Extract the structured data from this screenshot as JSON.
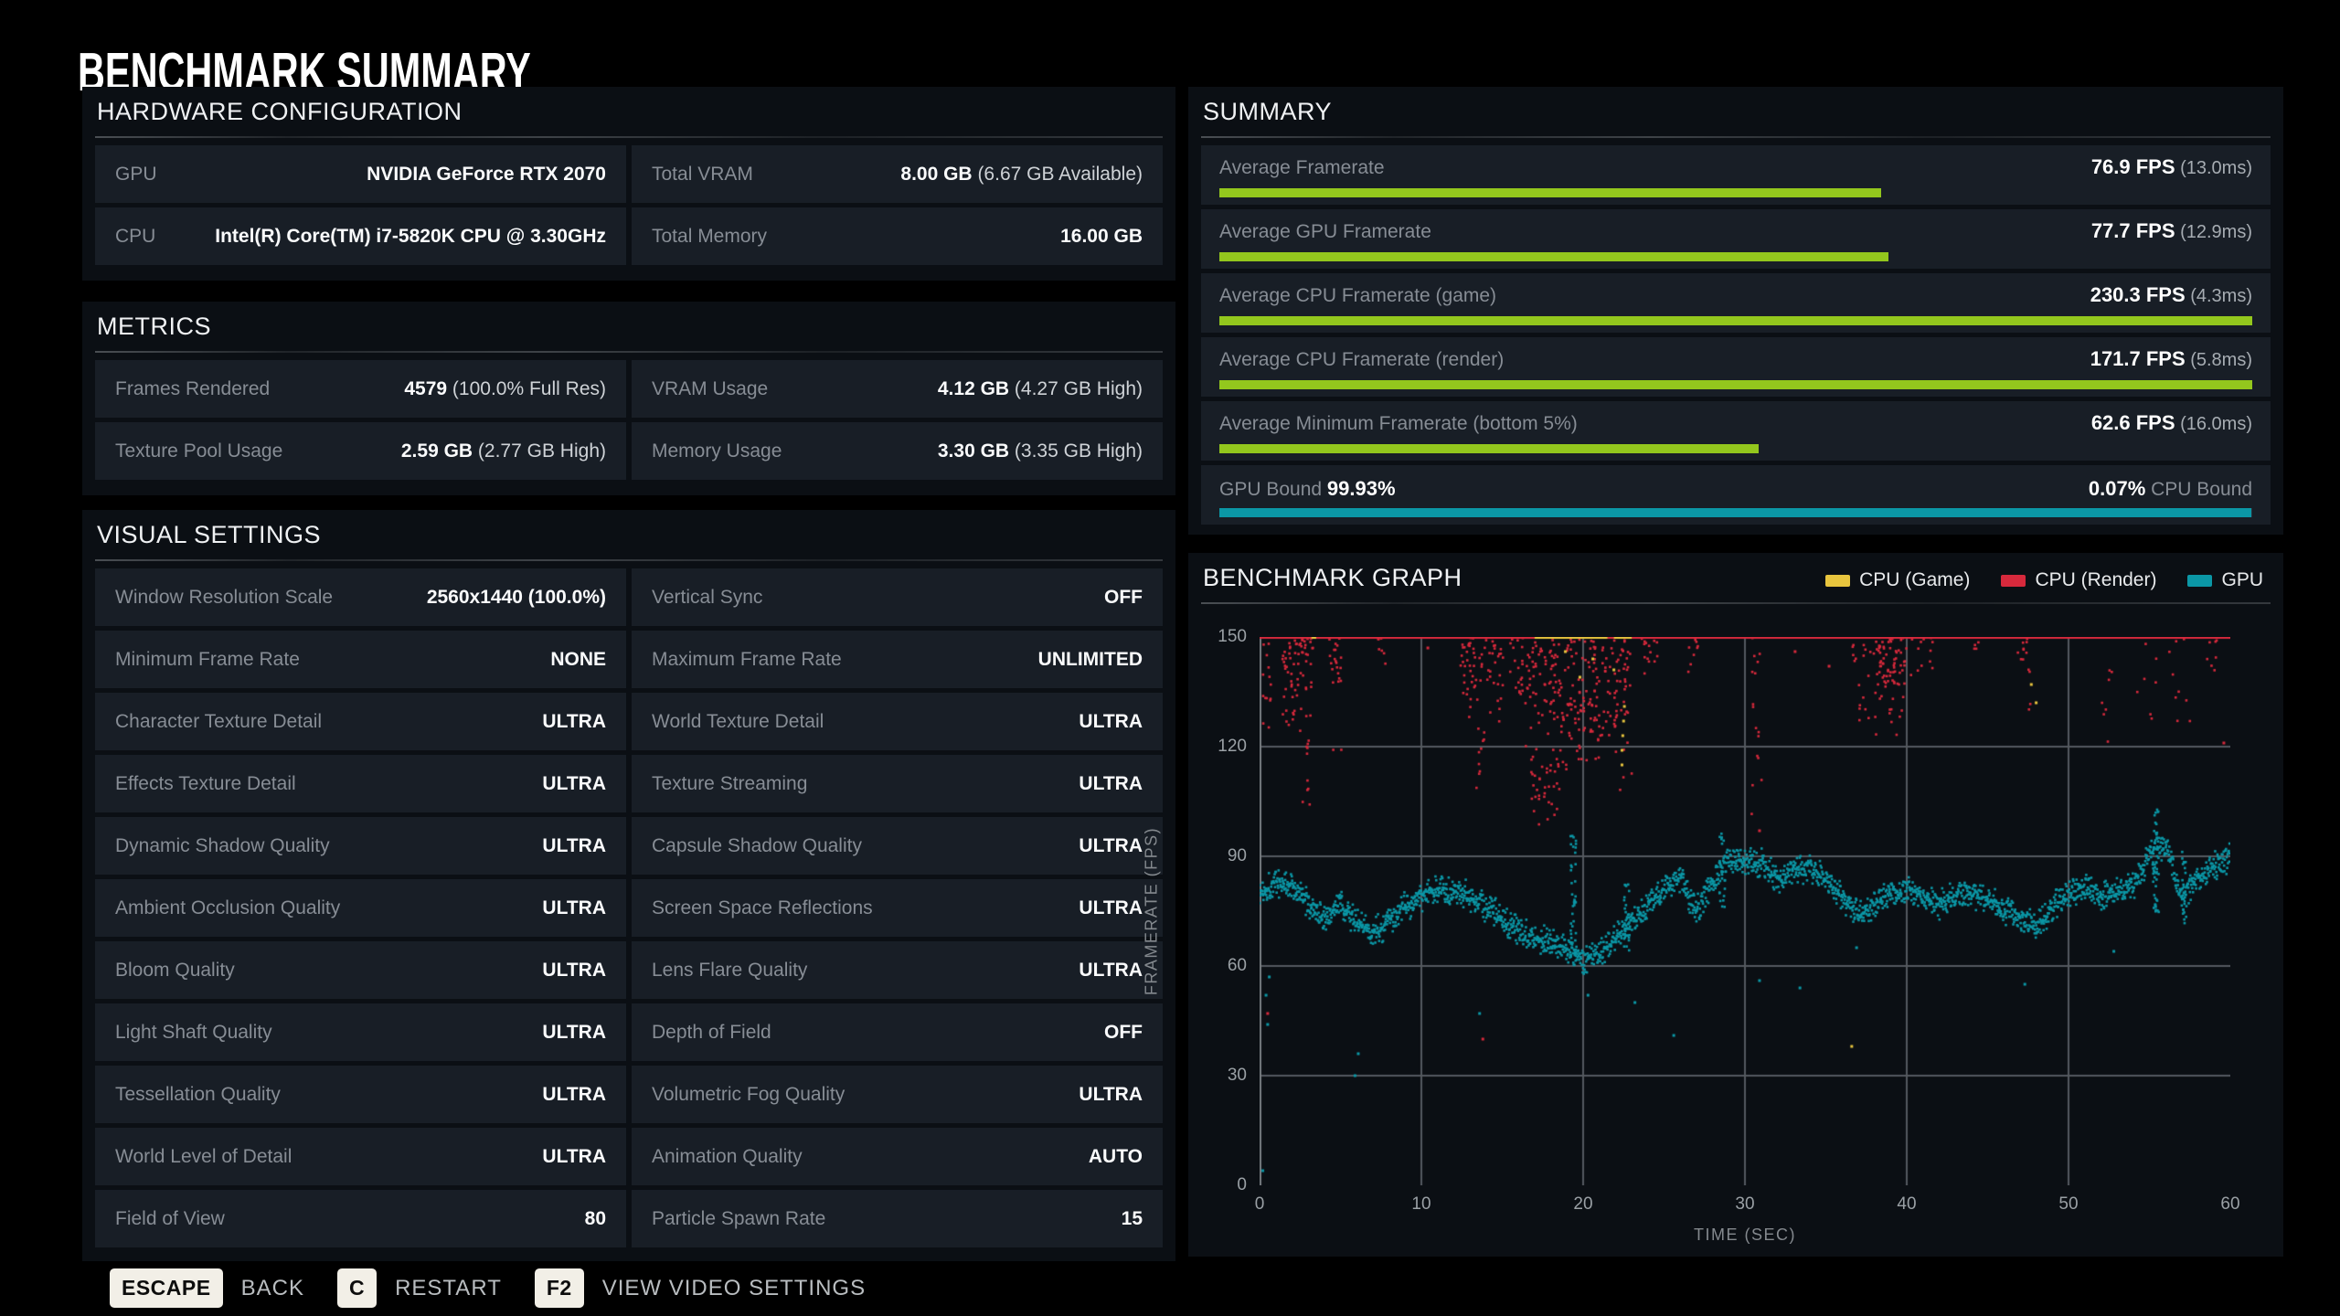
{
  "title": "BENCHMARK SUMMARY",
  "colors": {
    "accent_green": "#93c71d",
    "accent_teal": "#0b97a6",
    "accent_red": "#d7293c",
    "accent_yellow": "#e8c53e",
    "row_bg": "#181e26",
    "grid": "#54595f"
  },
  "hardware": {
    "title": "HARDWARE CONFIGURATION",
    "rows": [
      [
        {
          "label": "GPU",
          "value": "NVIDIA GeForce RTX 2070",
          "sub": ""
        },
        {
          "label": "Total VRAM",
          "value": "8.00 GB",
          "sub": "(6.67 GB Available)"
        }
      ],
      [
        {
          "label": "CPU",
          "value": "Intel(R) Core(TM) i7-5820K CPU @ 3.30GHz",
          "sub": ""
        },
        {
          "label": "Total Memory",
          "value": "16.00 GB",
          "sub": ""
        }
      ]
    ]
  },
  "metrics": {
    "title": "METRICS",
    "rows": [
      [
        {
          "label": "Frames Rendered",
          "value": "4579",
          "sub": "(100.0% Full Res)"
        },
        {
          "label": "VRAM Usage",
          "value": "4.12 GB",
          "sub": "(4.27 GB High)"
        }
      ],
      [
        {
          "label": "Texture Pool Usage",
          "value": "2.59 GB",
          "sub": "(2.77 GB High)"
        },
        {
          "label": "Memory Usage",
          "value": "3.30 GB",
          "sub": "(3.35 GB High)"
        }
      ]
    ]
  },
  "visual": {
    "title": "VISUAL SETTINGS",
    "rows": [
      [
        {
          "label": "Window Resolution Scale",
          "value": "2560x1440 (100.0%)"
        },
        {
          "label": "Vertical Sync",
          "value": "OFF"
        }
      ],
      [
        {
          "label": "Minimum Frame Rate",
          "value": "NONE"
        },
        {
          "label": "Maximum Frame Rate",
          "value": "UNLIMITED"
        }
      ],
      [
        {
          "label": "Character Texture Detail",
          "value": "ULTRA"
        },
        {
          "label": "World Texture Detail",
          "value": "ULTRA"
        }
      ],
      [
        {
          "label": "Effects Texture Detail",
          "value": "ULTRA"
        },
        {
          "label": "Texture Streaming",
          "value": "ULTRA"
        }
      ],
      [
        {
          "label": "Dynamic Shadow Quality",
          "value": "ULTRA"
        },
        {
          "label": "Capsule Shadow Quality",
          "value": "ULTRA"
        }
      ],
      [
        {
          "label": "Ambient Occlusion Quality",
          "value": "ULTRA"
        },
        {
          "label": "Screen Space Reflections",
          "value": "ULTRA"
        }
      ],
      [
        {
          "label": "Bloom Quality",
          "value": "ULTRA"
        },
        {
          "label": "Lens Flare Quality",
          "value": "ULTRA"
        }
      ],
      [
        {
          "label": "Light Shaft Quality",
          "value": "ULTRA"
        },
        {
          "label": "Depth of Field",
          "value": "OFF"
        }
      ],
      [
        {
          "label": "Tessellation Quality",
          "value": "ULTRA"
        },
        {
          "label": "Volumetric Fog Quality",
          "value": "ULTRA"
        }
      ],
      [
        {
          "label": "World Level of Detail",
          "value": "ULTRA"
        },
        {
          "label": "Animation Quality",
          "value": "AUTO"
        }
      ],
      [
        {
          "label": "Field of View",
          "value": "80"
        },
        {
          "label": "Particle Spawn Rate",
          "value": "15"
        }
      ]
    ]
  },
  "summary": {
    "title": "SUMMARY",
    "rows": [
      {
        "label": "Average Framerate",
        "value": "76.9 FPS",
        "sub": "(13.0ms)",
        "bar_pct": 64.1
      },
      {
        "label": "Average GPU Framerate",
        "value": "77.7 FPS",
        "sub": "(12.9ms)",
        "bar_pct": 64.8
      },
      {
        "label": "Average CPU Framerate (game)",
        "value": "230.3 FPS",
        "sub": "(4.3ms)",
        "bar_pct": 100
      },
      {
        "label": "Average CPU Framerate (render)",
        "value": "171.7 FPS",
        "sub": "(5.8ms)",
        "bar_pct": 100
      },
      {
        "label": "Average Minimum Framerate (bottom 5%)",
        "value": "62.6 FPS",
        "sub": "(16.0ms)",
        "bar_pct": 52.2
      }
    ],
    "bound": {
      "left_label": "GPU Bound",
      "left_value": "99.93%",
      "right_value": "0.07%",
      "right_label": "CPU Bound",
      "bar_pct": 99.93
    }
  },
  "chart_data": {
    "type": "scatter",
    "title": "BENCHMARK GRAPH",
    "xlabel": "TIME (SEC)",
    "ylabel": "FRAMERATE (FPS)",
    "xlim": [
      0,
      60
    ],
    "ylim": [
      0,
      150
    ],
    "xticks": [
      0,
      10,
      20,
      30,
      40,
      50,
      60
    ],
    "yticks": [
      150,
      120,
      90,
      60,
      30,
      0
    ],
    "grid": true,
    "legend_position": "top-right",
    "legend": [
      {
        "label": "CPU (Game)",
        "color": "#e8c53e"
      },
      {
        "label": "CPU (Render)",
        "color": "#d7293c"
      },
      {
        "label": "GPU",
        "color": "#0b97a6"
      }
    ],
    "series": {
      "gpu": {
        "name": "GPU",
        "color": "#0b97a6",
        "sample_step_sec": 0.024,
        "jitter_fps": 4.5,
        "mean_fps_by_second": [
          80,
          83,
          82,
          77,
          73,
          77,
          72,
          69,
          72,
          76,
          79,
          81,
          81,
          79,
          76,
          73,
          70,
          68,
          67,
          65,
          61,
          64,
          68,
          72,
          77,
          81,
          84,
          75,
          83,
          90,
          89,
          88,
          84,
          86,
          87,
          84,
          79,
          74,
          77,
          80,
          81,
          79,
          77,
          79,
          80,
          78,
          76,
          73,
          71,
          76,
          80,
          82,
          79,
          81,
          82,
          90,
          93,
          79,
          84,
          87,
          90
        ],
        "bursts": [
          {
            "t": 19.4,
            "min": 62,
            "max": 96,
            "n": 42
          },
          {
            "t": 22.7,
            "min": 64,
            "max": 86,
            "n": 26
          },
          {
            "t": 28.6,
            "min": 72,
            "max": 97,
            "n": 20
          },
          {
            "t": 55.4,
            "min": 74,
            "max": 103,
            "n": 46
          },
          {
            "t": 57.1,
            "min": 68,
            "max": 92,
            "n": 24
          }
        ],
        "outliers": [
          [
            0.2,
            4
          ],
          [
            0.4,
            52
          ],
          [
            0.5,
            44
          ],
          [
            0.6,
            57
          ],
          [
            5.9,
            30
          ],
          [
            6.1,
            36
          ],
          [
            13.6,
            47
          ],
          [
            20.3,
            52
          ],
          [
            23.2,
            50
          ],
          [
            25.6,
            41
          ],
          [
            30.9,
            56
          ],
          [
            33.4,
            54
          ],
          [
            36.9,
            65
          ],
          [
            47.3,
            55
          ],
          [
            52.8,
            64
          ]
        ]
      },
      "cpu_render": {
        "name": "CPU (Render)",
        "color": "#d7293c",
        "cap_fps": 150,
        "clusters": [
          [
            0.1,
            0.7,
            118,
            150,
            14
          ],
          [
            1.4,
            3.3,
            124,
            150,
            70
          ],
          [
            2.6,
            3.1,
            98,
            124,
            10
          ],
          [
            4.3,
            5.1,
            112,
            150,
            22
          ],
          [
            7.3,
            7.8,
            138,
            150,
            7
          ],
          [
            12.4,
            16.2,
            126,
            150,
            80
          ],
          [
            13.4,
            14.0,
            108,
            128,
            10
          ],
          [
            16.2,
            22.2,
            118,
            150,
            190
          ],
          [
            16.8,
            19.0,
            96,
            120,
            40
          ],
          [
            19.0,
            21.0,
            110,
            135,
            30
          ],
          [
            22.2,
            23.1,
            100,
            150,
            30
          ],
          [
            23.6,
            24.6,
            136,
            150,
            14
          ],
          [
            26.5,
            27.2,
            139,
            150,
            8
          ],
          [
            30.3,
            31.1,
            98,
            150,
            16
          ],
          [
            36.6,
            40.4,
            121,
            150,
            65
          ],
          [
            38.1,
            39.6,
            135,
            150,
            35
          ],
          [
            40.6,
            41.6,
            139,
            150,
            10
          ],
          [
            44.1,
            44.5,
            144,
            150,
            4
          ],
          [
            46.8,
            47.7,
            121,
            150,
            13
          ],
          [
            51.9,
            53.2,
            120,
            141,
            7
          ],
          [
            54.2,
            57.6,
            114,
            150,
            16
          ],
          [
            58.4,
            59.4,
            139,
            150,
            7
          ]
        ],
        "outliers": [
          [
            0.5,
            47
          ],
          [
            13.8,
            40
          ],
          [
            30.9,
            97
          ],
          [
            59.6,
            121
          ],
          [
            10.4,
            147
          ],
          [
            33.1,
            146
          ],
          [
            35.2,
            142
          ]
        ]
      },
      "cpu_game": {
        "name": "CPU (Game)",
        "color": "#e8c53e",
        "cap_fps": 150,
        "cap_segments": [
          [
            3.2,
            3.5
          ],
          [
            17.0,
            21.5
          ],
          [
            21.9,
            23.0
          ]
        ],
        "dots": [
          [
            22.4,
            115
          ],
          [
            22.4,
            119
          ],
          [
            22.45,
            123
          ],
          [
            22.5,
            127
          ],
          [
            22.55,
            131
          ],
          [
            21.9,
            141
          ],
          [
            20.6,
            144
          ],
          [
            19.8,
            139
          ],
          [
            18.9,
            146
          ],
          [
            36.6,
            38
          ],
          [
            47.7,
            137
          ],
          [
            48.0,
            132
          ]
        ]
      }
    }
  },
  "footer": {
    "items": [
      {
        "key": "ESCAPE",
        "label": "BACK"
      },
      {
        "key": "C",
        "label": "RESTART"
      },
      {
        "key": "F2",
        "label": "VIEW VIDEO SETTINGS"
      }
    ]
  }
}
